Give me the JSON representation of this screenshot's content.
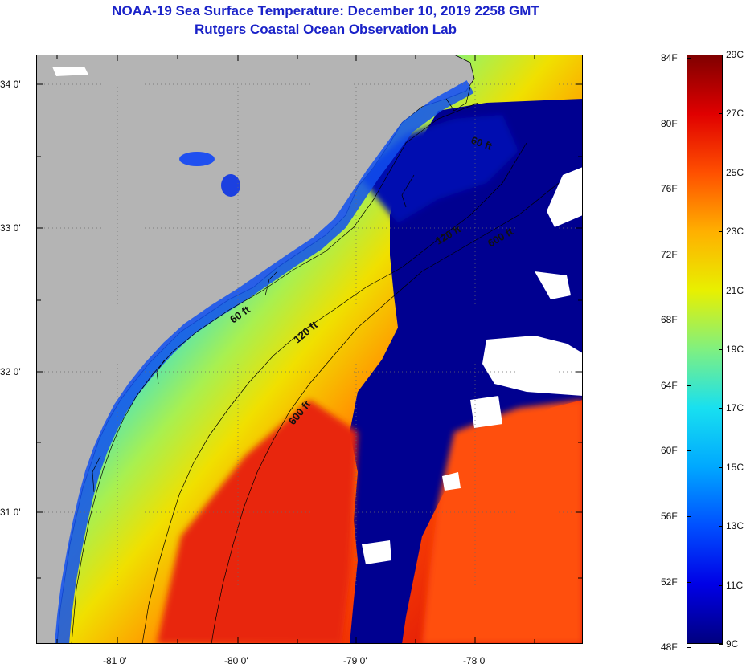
{
  "titles": {
    "line1": "NOAA-19 Sea Surface Temperature:  December 10, 2019 2258 GMT",
    "line2": "Rutgers Coastal Ocean Observation Lab"
  },
  "map": {
    "lon_labels": [
      "-81 0'",
      "-80 0'",
      "-79 0'",
      "-78 0'"
    ],
    "lat_labels": [
      "34 0'",
      "33 0'",
      "32 0'",
      "31 0'"
    ],
    "depth_contour_labels": [
      {
        "text": "60 ft",
        "contour": "60 ft"
      },
      {
        "text": "60 ft",
        "contour": "60 ft"
      },
      {
        "text": "120 ft",
        "contour": "120 ft"
      },
      {
        "text": "120 ft",
        "contour": "120 ft"
      },
      {
        "text": "600 ft",
        "contour": "600 ft"
      },
      {
        "text": "600 ft",
        "contour": "600 ft"
      }
    ],
    "colors": {
      "land": "#b4b4b4",
      "cloud": "#ffffff",
      "coast": "#000000",
      "grid_dots": "#7a7a7a"
    }
  },
  "colorbar": {
    "fahrenheit_labels": [
      "84F",
      "80F",
      "76F",
      "72F",
      "68F",
      "64F",
      "60F",
      "56F",
      "52F",
      "48F"
    ],
    "celsius_labels": [
      "29C",
      "27C",
      "25C",
      "23C",
      "21C",
      "19C",
      "17C",
      "15C",
      "13C",
      "11C",
      "9C"
    ],
    "scale_min_c": 9,
    "scale_max_c": 29,
    "gradient_colors": [
      "#000080",
      "#0000e6",
      "#0050ff",
      "#00a8ff",
      "#18e0f0",
      "#80f080",
      "#e8f000",
      "#ffb000",
      "#ff5000",
      "#e00000",
      "#800000"
    ]
  }
}
